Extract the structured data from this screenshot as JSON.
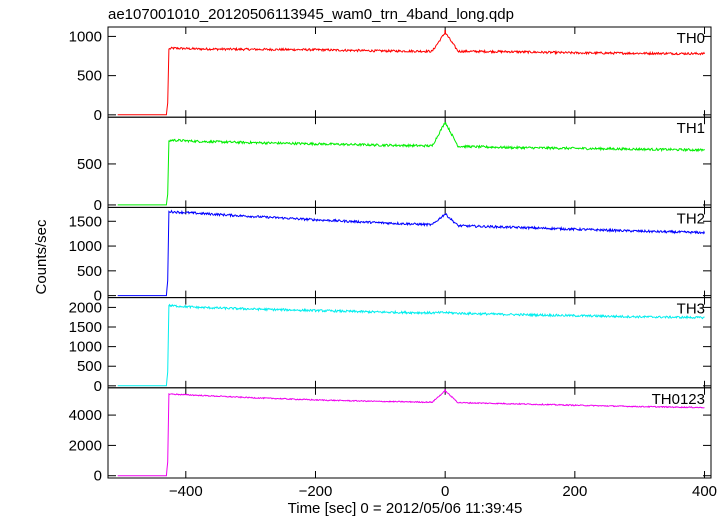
{
  "title": "ae107001010_20120506113945_wam0_trn_4band_long.qdp",
  "xlabel": "Time [sec] 0 = 2012/05/06 11:39:45",
  "ylabel": "Counts/sec",
  "chart_data": {
    "type": "line",
    "title": "ae107001010_20120506113945_wam0_trn_4band_long.qdp",
    "xlabel": "Time [sec] 0 = 2012/05/06 11:39:45",
    "ylabel": "Counts/sec",
    "xlim": [
      -520,
      410
    ],
    "xticks": [
      -400,
      -200,
      0,
      200,
      400
    ],
    "xtick_labels": [
      "−400",
      "−200",
      "0",
      "200",
      "400"
    ],
    "grid": false,
    "legend": "none",
    "panels": [
      {
        "name": "TH0",
        "color": "#ff0000",
        "ylim": [
          -30,
          1120
        ],
        "yticks": [
          0,
          500,
          1000
        ],
        "x": [
          -505,
          -430,
          -428,
          -426,
          -420,
          -380,
          -300,
          -200,
          -100,
          -20,
          0,
          20,
          100,
          200,
          300,
          400
        ],
        "y": [
          0,
          0,
          150,
          840,
          850,
          840,
          835,
          830,
          815,
          810,
          1050,
          810,
          805,
          790,
          785,
          780
        ],
        "noise": 28,
        "spike": {
          "x": 0,
          "y": 1080
        }
      },
      {
        "name": "TH1",
        "color": "#00ee00",
        "ylim": [
          -30,
          1070
        ],
        "yticks": [
          0,
          500
        ],
        "x": [
          -505,
          -430,
          -428,
          -426,
          -420,
          -380,
          -300,
          -200,
          -100,
          -20,
          0,
          20,
          100,
          200,
          300,
          400
        ],
        "y": [
          0,
          0,
          130,
          780,
          790,
          775,
          760,
          745,
          730,
          720,
          1010,
          715,
          700,
          690,
          680,
          670
        ],
        "noise": 28,
        "spike": {
          "x": 0,
          "y": 1010
        }
      },
      {
        "name": "TH2",
        "color": "#0000ff",
        "ylim": [
          -40,
          1780
        ],
        "yticks": [
          0,
          500,
          1000,
          1500
        ],
        "x": [
          -505,
          -430,
          -428,
          -426,
          -420,
          -380,
          -300,
          -200,
          -100,
          -20,
          0,
          20,
          100,
          200,
          300,
          400
        ],
        "y": [
          0,
          0,
          300,
          1700,
          1690,
          1660,
          1600,
          1530,
          1470,
          1430,
          1650,
          1410,
          1380,
          1340,
          1300,
          1270
        ],
        "noise": 45,
        "spike": {
          "x": 0,
          "y": 1650
        }
      },
      {
        "name": "TH3",
        "color": "#00eeee",
        "ylim": [
          -50,
          2250
        ],
        "yticks": [
          0,
          500,
          1000,
          1500,
          2000
        ],
        "x": [
          -505,
          -430,
          -428,
          -426,
          -420,
          -380,
          -300,
          -200,
          -100,
          -20,
          0,
          20,
          100,
          200,
          300,
          400
        ],
        "y": [
          0,
          0,
          350,
          2050,
          2040,
          2000,
          1960,
          1920,
          1880,
          1860,
          1870,
          1850,
          1820,
          1790,
          1760,
          1740
        ],
        "noise": 55,
        "spike": null
      },
      {
        "name": "TH0123",
        "color": "#ee00ee",
        "ylim": [
          -150,
          5800
        ],
        "yticks": [
          0,
          2000,
          4000
        ],
        "x": [
          -505,
          -430,
          -428,
          -426,
          -420,
          -380,
          -300,
          -200,
          -100,
          -20,
          0,
          20,
          100,
          200,
          300,
          400
        ],
        "y": [
          0,
          0,
          900,
          5400,
          5380,
          5300,
          5150,
          5000,
          4900,
          4850,
          5600,
          4820,
          4750,
          4650,
          4560,
          4500
        ],
        "noise": 70,
        "spike": {
          "x": 0,
          "y": 5700
        }
      }
    ]
  }
}
